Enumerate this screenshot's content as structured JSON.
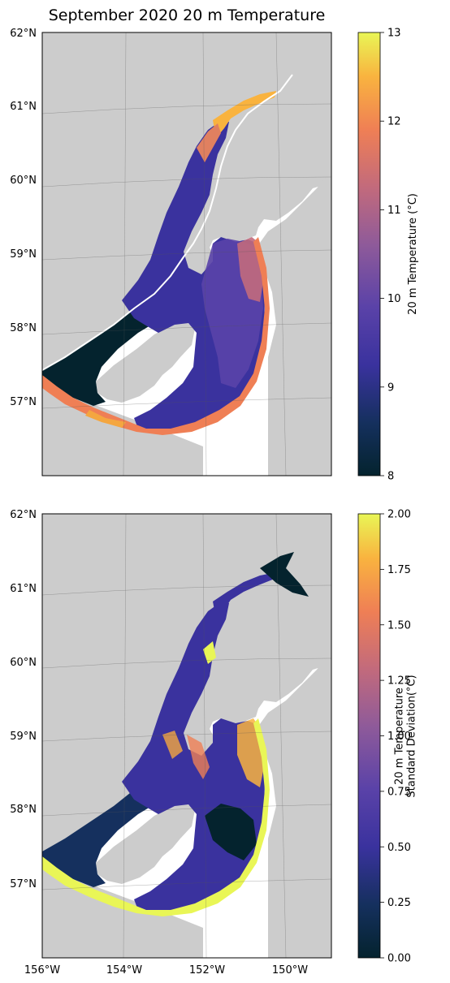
{
  "figure": {
    "title": "September 2020 20 m Temperature"
  },
  "map": {
    "lat_labels": [
      "62°N",
      "61°N",
      "60°N",
      "59°N",
      "58°N",
      "57°N"
    ],
    "lon_labels": [
      "156°W",
      "154°W",
      "152°W",
      "150°W"
    ],
    "land_color": "#cccccc",
    "ocean_color": "#ffffff"
  },
  "panels": [
    {
      "colorbar": {
        "label": "20 m Temperature (°C)",
        "label_lines": [
          "20 m Temperature (°C)"
        ],
        "min": 8,
        "max": 13,
        "ticks": [
          "8",
          "9",
          "10",
          "11",
          "12",
          "13"
        ],
        "colormap": "thermal"
      }
    },
    {
      "colorbar": {
        "label": "20 m Temperature Standard Deviation(°C)",
        "label_lines": [
          "20 m Temperature",
          "Standard Deviation(°C)"
        ],
        "min": 0,
        "max": 2,
        "ticks": [
          "0.00",
          "0.25",
          "0.50",
          "0.75",
          "1.00",
          "1.25",
          "1.50",
          "1.75",
          "2.00"
        ],
        "colormap": "thermal"
      }
    }
  ]
}
